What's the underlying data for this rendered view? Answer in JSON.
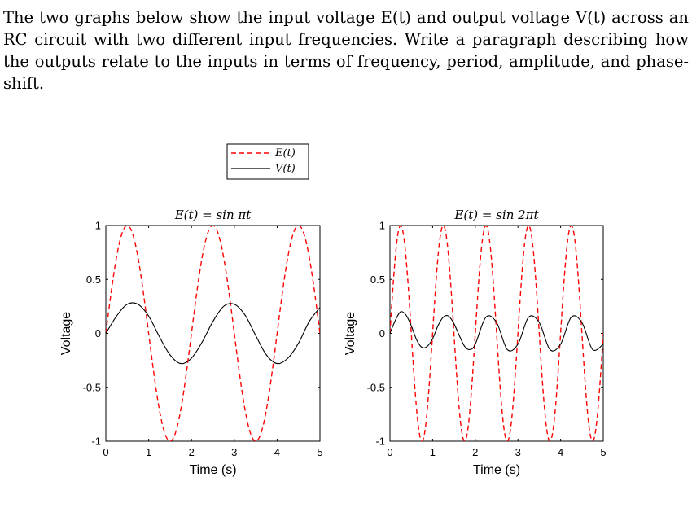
{
  "prompt": "The two graphs below show the input voltage E(t) and output voltage V(t) across an RC circuit with two different input frequencies. Write a paragraph describing how the outputs relate to the inputs in terms of frequency, period, amplitude, and phase-shift.",
  "legend": {
    "items": [
      "E(t)",
      "V(t)"
    ]
  },
  "colors": {
    "input": "#ff0000",
    "output": "#000000"
  },
  "chart_data": [
    {
      "type": "line",
      "title": "E(t) = sin πt",
      "xlabel": "Time (s)",
      "ylabel": "Voltage",
      "xlim": [
        0,
        5
      ],
      "ylim": [
        -1,
        1
      ],
      "xticks": [
        "0",
        "1",
        "2",
        "3",
        "4",
        "5"
      ],
      "yticks": [
        "1",
        "0.5",
        "0",
        "-0.5",
        "-1"
      ],
      "series": [
        {
          "name": "E(t)",
          "style": "dashed",
          "color": "#ff0000",
          "amplitude": 1,
          "angular_frequency": 3.14159,
          "phase": 0,
          "x": [
            0,
            0.25,
            0.5,
            0.75,
            1,
            1.25,
            1.5,
            1.75,
            2,
            2.25,
            2.5,
            2.75,
            3,
            3.25,
            3.5,
            3.75,
            4,
            4.25,
            4.5,
            4.75,
            5
          ],
          "y": [
            0,
            0.71,
            1,
            0.71,
            0,
            -0.71,
            -1,
            -0.71,
            0,
            0.71,
            1,
            0.71,
            0,
            -0.71,
            -1,
            -0.71,
            0,
            0.71,
            1,
            0.71,
            0
          ]
        },
        {
          "name": "V(t)",
          "style": "solid",
          "color": "#000000",
          "x": [
            0,
            0.25,
            0.5,
            0.75,
            1,
            1.25,
            1.5,
            1.75,
            2,
            2.25,
            2.5,
            2.75,
            3,
            3.25,
            3.5,
            3.75,
            4,
            4.25,
            4.5,
            4.75,
            5
          ],
          "y": [
            0,
            0.16,
            0.27,
            0.27,
            0.16,
            -0.03,
            -0.2,
            -0.28,
            -0.23,
            -0.08,
            0.11,
            0.25,
            0.27,
            0.17,
            -0.02,
            -0.2,
            -0.28,
            -0.23,
            -0.09,
            0.11,
            0.24
          ]
        }
      ]
    },
    {
      "type": "line",
      "title": "E(t) = sin 2πt",
      "xlabel": "Time (s)",
      "ylabel": "Voltage",
      "xlim": [
        0,
        5
      ],
      "ylim": [
        -1,
        1
      ],
      "xticks": [
        "0",
        "1",
        "2",
        "3",
        "4",
        "5"
      ],
      "yticks": [
        "1",
        "0.5",
        "0",
        "-0.5",
        "-1"
      ],
      "series": [
        {
          "name": "E(t)",
          "style": "dashed",
          "color": "#ff0000",
          "amplitude": 1,
          "angular_frequency": 6.28319,
          "phase": 0,
          "x": [
            0,
            0.25,
            0.5,
            0.75,
            1,
            1.25,
            1.5,
            1.75,
            2,
            2.25,
            2.5,
            2.75,
            3,
            3.25,
            3.5,
            3.75,
            4,
            4.25,
            4.5,
            4.75,
            5
          ],
          "y": [
            0,
            1,
            0,
            -1,
            0,
            1,
            0,
            -1,
            0,
            1,
            0,
            -1,
            0,
            1,
            0,
            -1,
            0,
            1,
            0,
            -1,
            0
          ]
        },
        {
          "name": "V(t)",
          "style": "solid",
          "color": "#000000",
          "x": [
            0,
            0.125,
            0.25,
            0.375,
            0.5,
            0.625,
            0.75,
            0.875,
            1,
            1.125,
            1.25,
            1.375,
            1.5,
            1.625,
            1.75,
            1.875,
            2,
            2.25,
            2.5,
            2.75,
            3,
            3.25,
            3.5,
            3.75,
            4,
            4.25,
            4.5,
            4.75,
            5
          ],
          "y": [
            0,
            0.12,
            0.2,
            0.17,
            0.07,
            -0.06,
            -0.13,
            -0.12,
            -0.05,
            0.07,
            0.15,
            0.16,
            0.09,
            -0.02,
            -0.12,
            -0.15,
            -0.1,
            0.15,
            0.1,
            -0.15,
            -0.1,
            0.15,
            0.1,
            -0.15,
            -0.1,
            0.15,
            0.1,
            -0.15,
            -0.1
          ]
        }
      ]
    }
  ]
}
